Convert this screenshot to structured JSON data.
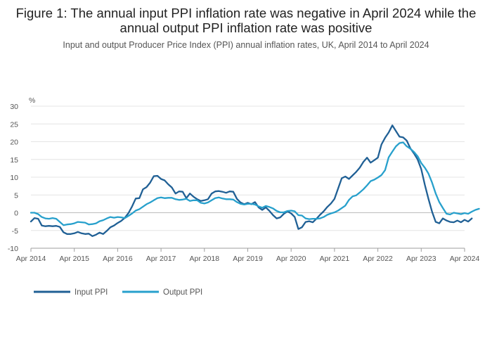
{
  "title": "Figure 1: The annual input PPI inflation rate was negative in April 2024 while the annual output PPI inflation rate was positive",
  "subtitle": "Input and output Producer Price Index (PPI) annual inflation rates, UK, April 2014 to April 2024",
  "chart_data": {
    "type": "line",
    "ylabel": "%",
    "ylim": [
      -10,
      30
    ],
    "yticks": [
      -10,
      -5,
      0,
      5,
      10,
      15,
      20,
      25,
      30
    ],
    "xlim": [
      0,
      120
    ],
    "x_start": "Apr 2014",
    "x_step": "1 month",
    "xtick_labels": [
      "Apr 2014",
      "Apr 2015",
      "Apr 2016",
      "Apr 2017",
      "Apr 2018",
      "Apr 2019",
      "Apr 2020",
      "Apr 2021",
      "Apr 2022",
      "Apr 2023",
      "Apr 2024"
    ],
    "xticks": [
      0,
      12,
      24,
      36,
      48,
      60,
      72,
      84,
      96,
      108,
      120
    ],
    "legend_position": "bottom-left",
    "series": [
      {
        "name": "Input PPI",
        "color": "#206095",
        "values": [
          -2.5,
          -1.5,
          -1.7,
          -3.6,
          -3.8,
          -3.7,
          -3.8,
          -3.7,
          -4.0,
          -5.5,
          -6.0,
          -6.0,
          -5.8,
          -5.4,
          -5.8,
          -6.0,
          -5.9,
          -6.6,
          -6.2,
          -5.6,
          -6.0,
          -5.1,
          -4.1,
          -3.6,
          -2.9,
          -2.3,
          -1.4,
          -0.1,
          1.8,
          4.0,
          4.1,
          6.6,
          7.2,
          8.5,
          10.3,
          10.4,
          9.5,
          9.1,
          8.0,
          7.1,
          5.4,
          6.0,
          5.9,
          4.1,
          5.4,
          4.5,
          3.8,
          3.3,
          3.5,
          3.8,
          5.4,
          6.0,
          6.1,
          5.9,
          5.6,
          6.0,
          5.9,
          3.9,
          2.9,
          2.4,
          2.8,
          2.4,
          3.0,
          1.5,
          0.8,
          1.5,
          0.5,
          -0.7,
          -1.6,
          -1.3,
          -0.3,
          0.4,
          -0.2,
          -1.2,
          -4.6,
          -4.1,
          -2.6,
          -2.4,
          -2.7,
          -1.7,
          -0.6,
          0.4,
          1.6,
          2.6,
          3.9,
          6.8,
          9.7,
          10.2,
          9.5,
          10.5,
          11.5,
          12.7,
          14.3,
          15.5,
          14.1,
          14.8,
          15.5,
          19.2,
          21.1,
          22.6,
          24.6,
          23.0,
          21.4,
          21.2,
          20.3,
          18.1,
          16.7,
          15.0,
          12.3,
          7.9,
          3.9,
          0.3,
          -2.6,
          -3.0,
          -1.6,
          -2.2,
          -2.6,
          -2.7,
          -2.2,
          -2.7,
          -2.0,
          -2.5,
          -1.6
        ]
      },
      {
        "name": "Output PPI",
        "color": "#27A0CC",
        "values": [
          0.0,
          0.0,
          -0.4,
          -1.2,
          -1.6,
          -1.7,
          -1.5,
          -1.7,
          -2.6,
          -3.5,
          -3.3,
          -3.2,
          -3.0,
          -2.6,
          -2.7,
          -2.8,
          -3.3,
          -3.2,
          -3.0,
          -2.4,
          -2.1,
          -1.6,
          -1.2,
          -1.4,
          -1.2,
          -1.3,
          -1.5,
          -0.9,
          -0.2,
          0.6,
          1.0,
          1.7,
          2.4,
          2.9,
          3.5,
          4.1,
          4.3,
          4.1,
          4.2,
          4.2,
          3.8,
          3.6,
          3.7,
          3.9,
          3.3,
          3.5,
          3.5,
          2.8,
          2.6,
          2.9,
          3.5,
          4.1,
          4.3,
          4.0,
          3.8,
          3.8,
          3.7,
          3.0,
          2.5,
          2.3,
          2.5,
          2.5,
          2.3,
          1.8,
          1.4,
          1.9,
          1.6,
          1.2,
          0.5,
          0.1,
          0.1,
          0.5,
          0.6,
          0.4,
          -0.7,
          -0.8,
          -1.6,
          -1.8,
          -1.7,
          -1.7,
          -1.6,
          -1.2,
          -0.6,
          -0.2,
          0.1,
          0.6,
          1.3,
          2.0,
          3.6,
          4.6,
          4.9,
          5.7,
          6.6,
          7.7,
          8.9,
          9.3,
          9.9,
          10.6,
          12.0,
          15.6,
          17.2,
          18.7,
          19.6,
          19.8,
          18.7,
          18.0,
          17.1,
          15.9,
          14.0,
          12.7,
          11.0,
          8.5,
          5.4,
          3.0,
          1.3,
          -0.3,
          -0.5,
          0.0,
          -0.2,
          -0.4,
          -0.1,
          -0.3,
          0.3,
          0.8,
          1.1
        ]
      }
    ]
  }
}
